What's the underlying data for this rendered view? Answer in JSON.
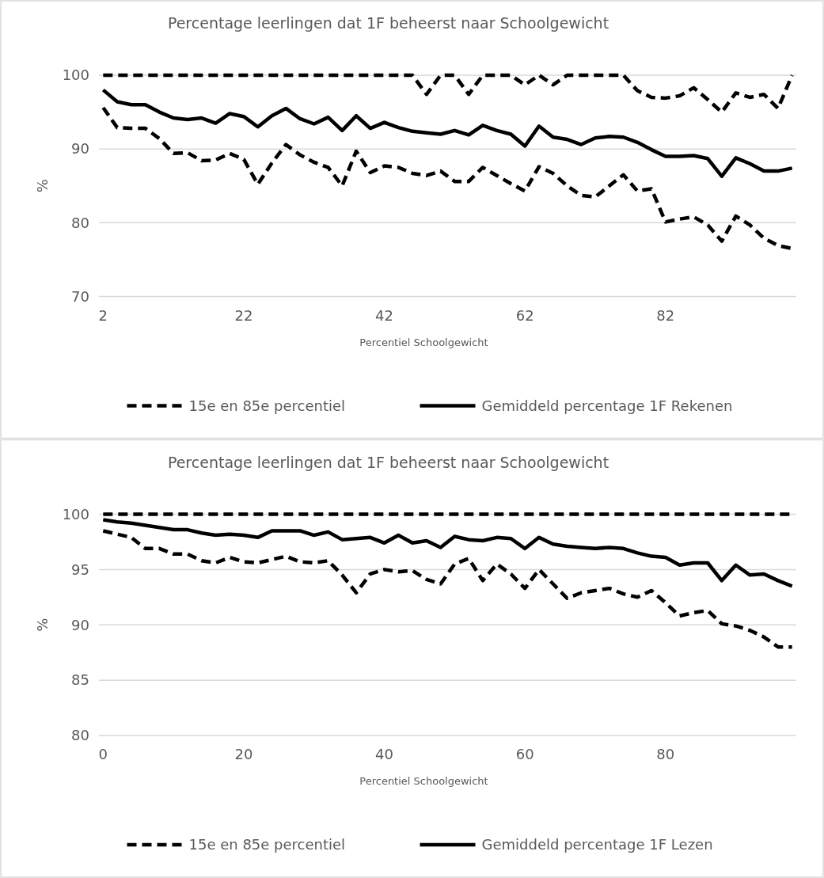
{
  "chart_data": [
    {
      "type": "line",
      "title": "Percentage leerlingen dat 1F beheerst naar Schoolgewicht",
      "xlabel": "Percentiel Schoolgewicht",
      "ylabel": "%",
      "categories": [
        "2",
        null,
        null,
        null,
        null,
        null,
        null,
        null,
        null,
        null,
        "22",
        null,
        null,
        null,
        null,
        null,
        null,
        null,
        null,
        null,
        "42",
        null,
        null,
        null,
        null,
        null,
        null,
        null,
        null,
        null,
        "62",
        null,
        null,
        null,
        null,
        null,
        null,
        null,
        null,
        null,
        "82",
        null,
        null,
        null,
        null,
        null,
        null,
        null,
        null,
        null
      ],
      "ylim": [
        70,
        100
      ],
      "yticks": [
        70,
        80,
        90,
        100
      ],
      "grid": "y",
      "legend": "bottom",
      "marker": "none",
      "series": [
        {
          "name": "15e en 85e percentiel",
          "color": "#000000",
          "line_style": "dashed",
          "values": [
            95.6,
            92.9,
            92.8,
            92.8,
            91.4,
            89.4,
            89.5,
            88.4,
            88.5,
            89.4,
            88.6,
            85.2,
            88.1,
            90.6,
            89.2,
            88.2,
            87.5,
            85.0,
            89.7,
            86.8,
            87.7,
            87.5,
            86.7,
            86.4,
            87.0,
            85.6,
            85.6,
            87.5,
            86.4,
            85.3,
            84.3,
            87.6,
            86.7,
            85.0,
            83.7,
            83.5,
            85.0,
            86.5,
            84.3,
            84.6,
            80.1,
            80.5,
            80.8,
            79.7,
            77.5,
            80.9,
            79.7,
            77.9,
            76.9,
            76.5
          ]
        },
        {
          "color": "#000000",
          "line_style": "dashed",
          "values": [
            100,
            100,
            100,
            100,
            100,
            100,
            100,
            100,
            100,
            100,
            100,
            100,
            100,
            100,
            100,
            100,
            100,
            100,
            100,
            100,
            100,
            100,
            100,
            97.4,
            100,
            100,
            97.4,
            100,
            100,
            100,
            98.7,
            100,
            98.7,
            100,
            100,
            100,
            100,
            100,
            97.9,
            97.0,
            96.9,
            97.2,
            98.3,
            96.7,
            95.0,
            97.6,
            97.0,
            97.4,
            95.5,
            100
          ]
        },
        {
          "name": "Gemiddeld percentage 1F Rekenen",
          "color": "#000000",
          "line_style": "solid",
          "values": [
            98.0,
            96.4,
            96.0,
            96.0,
            95.0,
            94.2,
            94.0,
            94.2,
            93.5,
            94.8,
            94.4,
            93.0,
            94.5,
            95.5,
            94.1,
            93.4,
            94.3,
            92.5,
            94.5,
            92.8,
            93.6,
            92.9,
            92.4,
            92.2,
            92.0,
            92.5,
            91.9,
            93.2,
            92.5,
            92.0,
            90.4,
            93.1,
            91.6,
            91.3,
            90.6,
            91.5,
            91.7,
            91.6,
            90.9,
            89.9,
            89.0,
            89.0,
            89.1,
            88.7,
            86.3,
            88.8,
            88.0,
            87.0,
            87.0,
            87.4
          ]
        }
      ]
    },
    {
      "type": "line",
      "title": "Percentage leerlingen dat 1F beheerst naar Schoolgewicht",
      "xlabel": "Percentiel Schoolgewicht",
      "ylabel": "%",
      "categories": [
        "0",
        null,
        null,
        null,
        null,
        null,
        null,
        null,
        null,
        null,
        "20",
        null,
        null,
        null,
        null,
        null,
        null,
        null,
        null,
        null,
        "40",
        null,
        null,
        null,
        null,
        null,
        null,
        null,
        null,
        null,
        "60",
        null,
        null,
        null,
        null,
        null,
        null,
        null,
        null,
        null,
        "80",
        null,
        null,
        null,
        null,
        null,
        null,
        null,
        null,
        null
      ],
      "ylim": [
        80,
        100
      ],
      "yticks": [
        80,
        85,
        90,
        95,
        100
      ],
      "grid": "y",
      "legend": "bottom",
      "marker": "none",
      "series": [
        {
          "name": "15e en 85e percentiel",
          "color": "#000000",
          "line_style": "dashed",
          "values": [
            98.5,
            98.2,
            97.9,
            96.9,
            96.9,
            96.4,
            96.4,
            95.8,
            95.6,
            96.1,
            95.7,
            95.6,
            95.9,
            96.2,
            95.7,
            95.6,
            95.8,
            94.5,
            92.9,
            94.6,
            95.0,
            94.8,
            94.9,
            94.1,
            93.7,
            95.5,
            96.0,
            94.0,
            95.5,
            94.6,
            93.3,
            95.0,
            93.7,
            92.4,
            92.9,
            93.1,
            93.3,
            92.8,
            92.5,
            93.1,
            92.0,
            90.8,
            91.1,
            91.3,
            90.1,
            89.9,
            89.5,
            88.9,
            88.0,
            88.0
          ]
        },
        {
          "color": "#000000",
          "line_style": "dashed",
          "values": [
            100,
            100,
            100,
            100,
            100,
            100,
            100,
            100,
            100,
            100,
            100,
            100,
            100,
            100,
            100,
            100,
            100,
            100,
            100,
            100,
            100,
            100,
            100,
            100,
            100,
            100,
            100,
            100,
            100,
            100,
            100,
            100,
            100,
            100,
            100,
            100,
            100,
            100,
            100,
            100,
            100,
            100,
            100,
            100,
            100,
            100,
            100,
            100,
            100,
            100
          ]
        },
        {
          "name": "Gemiddeld percentage 1F Lezen",
          "color": "#000000",
          "line_style": "solid",
          "values": [
            99.5,
            99.3,
            99.2,
            99.0,
            98.8,
            98.6,
            98.6,
            98.3,
            98.1,
            98.2,
            98.1,
            97.9,
            98.5,
            98.5,
            98.5,
            98.1,
            98.4,
            97.7,
            97.8,
            97.9,
            97.4,
            98.1,
            97.4,
            97.6,
            97.0,
            98.0,
            97.7,
            97.6,
            97.9,
            97.8,
            96.9,
            97.9,
            97.3,
            97.1,
            97.0,
            96.9,
            97.0,
            96.9,
            96.5,
            96.2,
            96.1,
            95.4,
            95.6,
            95.6,
            94.0,
            95.4,
            94.5,
            94.6,
            94.0,
            93.5
          ]
        }
      ]
    }
  ]
}
